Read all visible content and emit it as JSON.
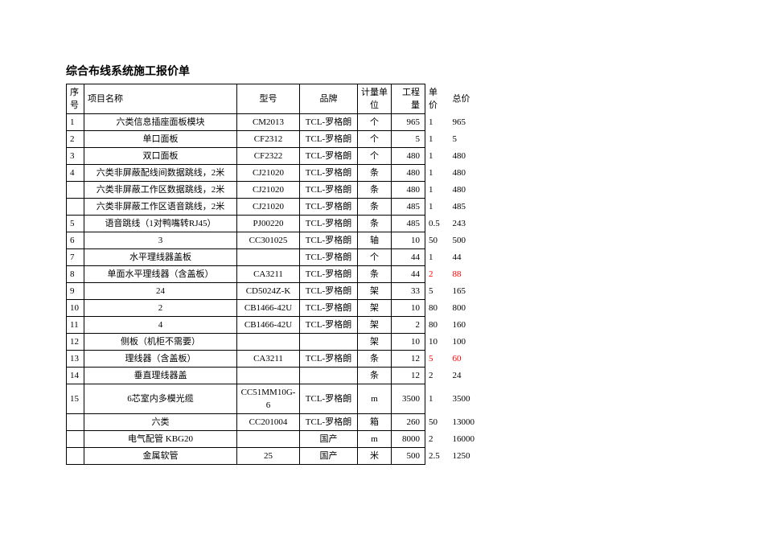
{
  "title": "综合布线系统施工报价单",
  "headers": {
    "seq": "序号",
    "name": "项目名称",
    "model": "型号",
    "brand": "品牌",
    "unit": "计量单位",
    "qty": "工程量",
    "price": "单价",
    "total": "总价"
  },
  "rows": [
    {
      "seq": "1",
      "name": "六类信息插座面板模块",
      "model": "CM2013",
      "brand": "TCL-罗格朗",
      "unit": "个",
      "qty": "965",
      "price": "1",
      "total": "965"
    },
    {
      "seq": "2",
      "name": "单口面板",
      "model": "CF2312",
      "brand": "TCL-罗格朗",
      "unit": "个",
      "qty": "5",
      "price": "1",
      "total": "5"
    },
    {
      "seq": "3",
      "name": "双口面板",
      "model": "CF2322",
      "brand": "TCL-罗格朗",
      "unit": "个",
      "qty": "480",
      "price": "1",
      "total": "480"
    },
    {
      "seq": "4",
      "name": "六类非屏蔽配线间数据跳线，2米",
      "model": "CJ21020",
      "brand": "TCL-罗格朗",
      "unit": "条",
      "qty": "480",
      "price": "1",
      "total": "480"
    },
    {
      "seq": "",
      "name": "六类非屏蔽工作区数据跳线，2米",
      "model": "CJ21020",
      "brand": "TCL-罗格朗",
      "unit": "条",
      "qty": "480",
      "price": "1",
      "total": "480"
    },
    {
      "seq": "",
      "name": "六类非屏蔽工作区语音跳线，2米",
      "model": "CJ21020",
      "brand": "TCL-罗格朗",
      "unit": "条",
      "qty": "485",
      "price": "1",
      "total": "485"
    },
    {
      "seq": "5",
      "name": "语音跳线（1对鸭嘴转RJ45）",
      "model": "PJ00220",
      "brand": "TCL-罗格朗",
      "unit": "条",
      "qty": "485",
      "price": "0.5",
      "total": "243"
    },
    {
      "seq": "6",
      "name": "3",
      "model": "CC301025",
      "brand": "TCL-罗格朗",
      "unit": "轴",
      "qty": "10",
      "price": "50",
      "total": "500"
    },
    {
      "seq": "7",
      "name": "水平理线器盖板",
      "model": "",
      "brand": "TCL-罗格朗",
      "unit": "个",
      "qty": "44",
      "price": "1",
      "total": "44"
    },
    {
      "seq": "8",
      "name": "单面水平理线器（含盖板）",
      "model": "CA3211",
      "brand": "TCL-罗格朗",
      "unit": "条",
      "qty": "44",
      "price": "2",
      "total": "88",
      "price_red": true,
      "total_red": true
    },
    {
      "seq": "9",
      "name": "24",
      "model": "CD5024Z-K",
      "brand": "TCL-罗格朗",
      "unit": "架",
      "qty": "33",
      "price": "5",
      "total": "165"
    },
    {
      "seq": "10",
      "name": "2",
      "model": "CB1466-42U",
      "brand": "TCL-罗格朗",
      "unit": "架",
      "qty": "10",
      "price": "80",
      "total": "800"
    },
    {
      "seq": "11",
      "name": "4",
      "model": "CB1466-42U",
      "brand": "TCL-罗格朗",
      "unit": "架",
      "qty": "2",
      "price": "80",
      "total": "160"
    },
    {
      "seq": "12",
      "name": "侧板（机柜不需要）",
      "model": "",
      "brand": "",
      "unit": "架",
      "qty": "10",
      "price": "10",
      "total": "100"
    },
    {
      "seq": "13",
      "name": "理线器（含盖板）",
      "model": "CA3211",
      "brand": "TCL-罗格朗",
      "unit": "条",
      "qty": "12",
      "price": "5",
      "total": "60",
      "price_red": true,
      "total_red": true
    },
    {
      "seq": "14",
      "name": "垂直理线器盖",
      "model": "",
      "brand": "",
      "unit": "条",
      "qty": "12",
      "price": "2",
      "total": "24"
    },
    {
      "seq": "15",
      "name": "6芯室内多模光缆",
      "model": "CC51MM10G-6",
      "brand": "TCL-罗格朗",
      "unit": "m",
      "qty": "3500",
      "price": "1",
      "total": "3500"
    },
    {
      "seq": "",
      "name": "六类",
      "model": "CC201004",
      "brand": "TCL-罗格朗",
      "unit": "箱",
      "qty": "260",
      "price": "50",
      "total": "13000"
    },
    {
      "seq": "",
      "name": "电气配管 KBG20",
      "model": "",
      "brand": "国产",
      "unit": "m",
      "qty": "8000",
      "price": "2",
      "total": "16000"
    },
    {
      "seq": "",
      "name": "金属软管",
      "model": "25",
      "brand": "国产",
      "unit": "米",
      "qty": "500",
      "price": "2.5",
      "total": "1250"
    }
  ]
}
